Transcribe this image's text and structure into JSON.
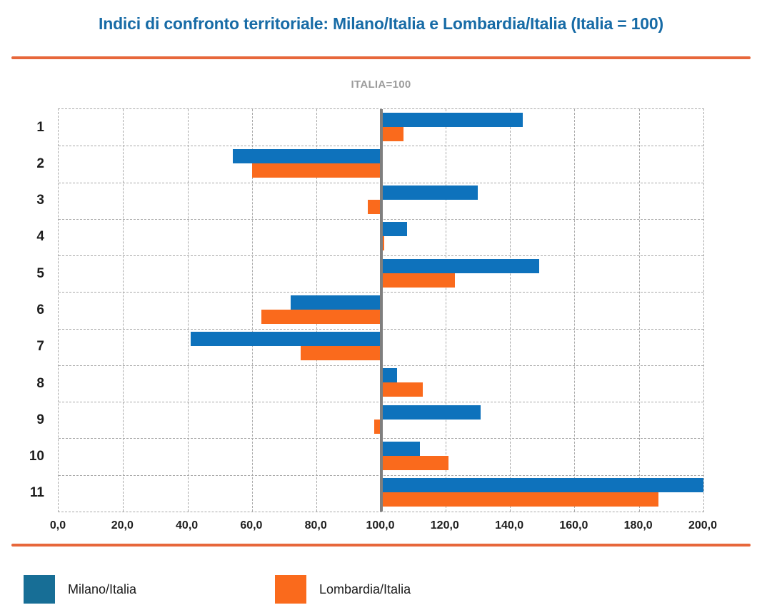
{
  "page": {
    "title": "Indici di confronto territoriale: Milano/Italia e Lombardia/Italia (Italia = 100)"
  },
  "chart_data": {
    "type": "bar",
    "orientation": "horizontal",
    "title": "ITALIA=100",
    "baseline": 100,
    "categories": [
      "1",
      "2",
      "3",
      "4",
      "5",
      "6",
      "7",
      "8",
      "9",
      "10",
      "11"
    ],
    "series": [
      {
        "name": "Milano/Italia",
        "color": "#0e72bc",
        "values": [
          144,
          54,
          130,
          108,
          149,
          72,
          41,
          105,
          131,
          112,
          200
        ]
      },
      {
        "name": "Lombardia/Italia",
        "color": "#fa6a1c",
        "values": [
          107,
          60,
          96,
          101,
          123,
          63,
          75,
          113,
          98,
          121,
          186
        ]
      }
    ],
    "x_axis": {
      "min": 0,
      "max": 200,
      "tick_step": 20,
      "tick_labels": [
        "0,0",
        "20,0",
        "40,0",
        "60,0",
        "80,0",
        "100,0",
        "120,0",
        "140,0",
        "160,0",
        "180,0",
        "200,0"
      ]
    },
    "reference_line": {
      "value": 100,
      "label": "ITALIA=100",
      "color": "#7f7f7f"
    },
    "grid": "dashed",
    "legend_position": "bottom"
  },
  "legend": {
    "items": [
      {
        "label": "Milano/Italia",
        "color": "#176e96"
      },
      {
        "label": "Lombardia/Italia",
        "color": "#fa6a1c"
      }
    ]
  },
  "colors": {
    "title_blue": "#176ba6",
    "divider_orange": "#e7673b",
    "subtitle_gray": "#9b9b9b",
    "gridline_gray": "#a8a8a8",
    "reference_gray": "#7f7f7f",
    "bar_blue": "#0e72bc",
    "bar_orange": "#fa6a1c"
  }
}
